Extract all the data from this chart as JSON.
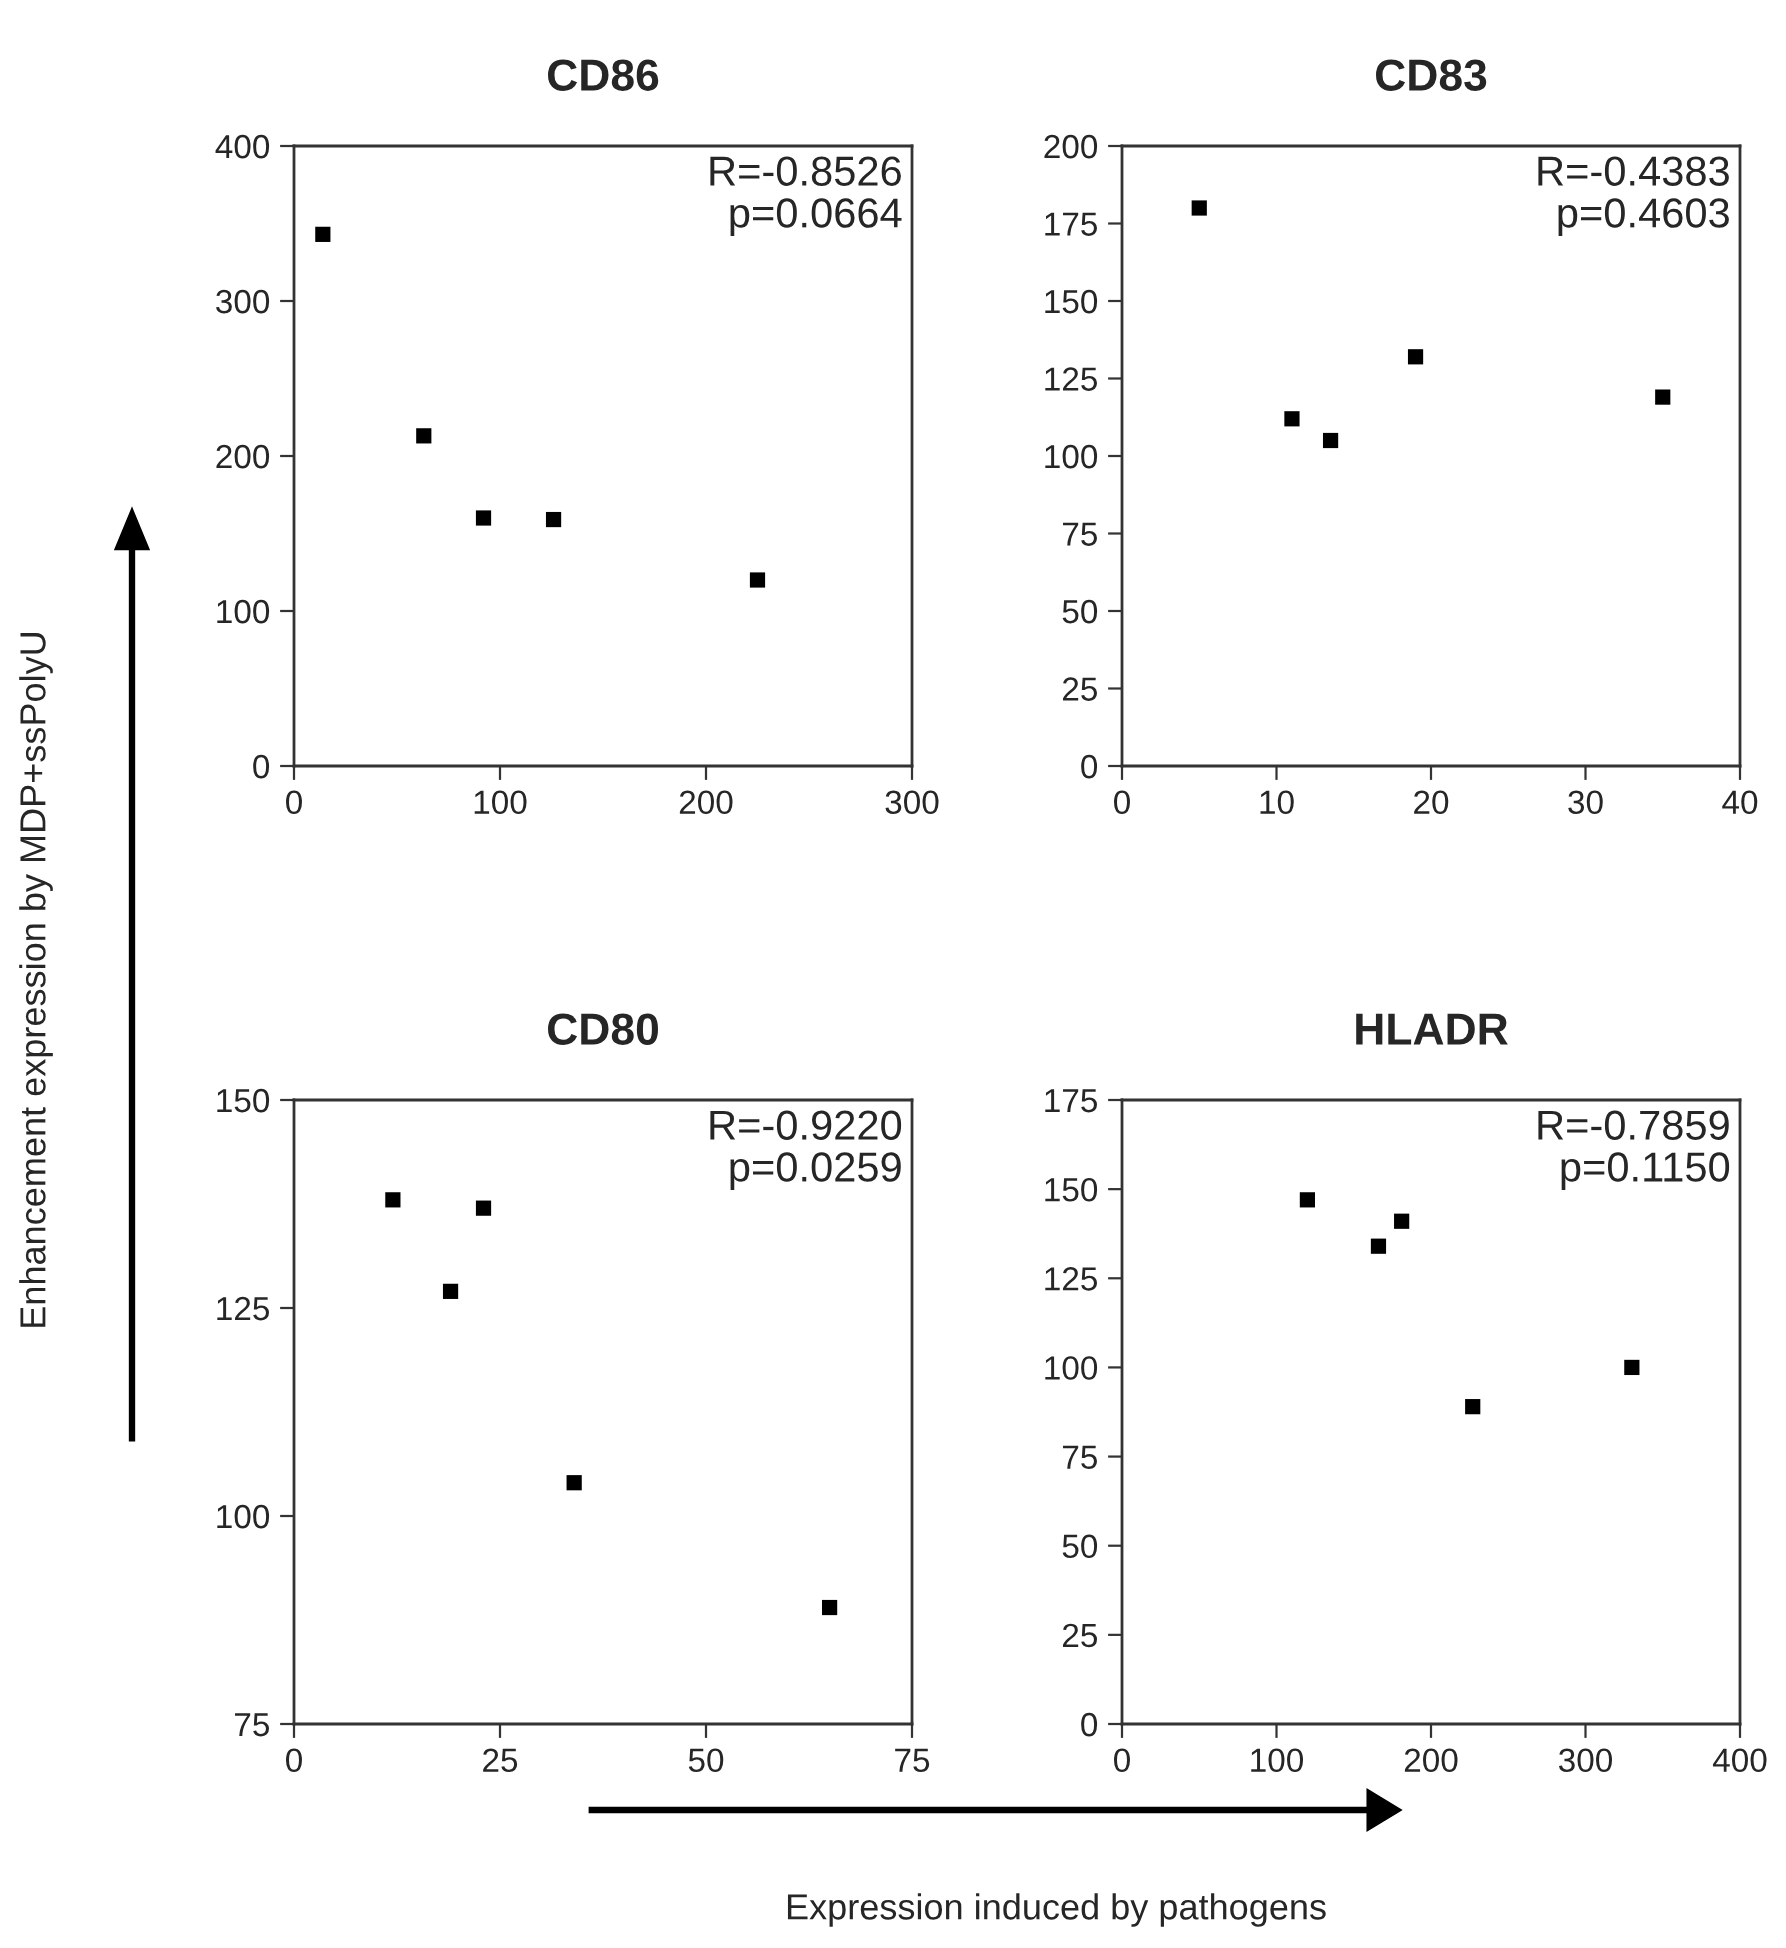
{
  "chart_data": [
    {
      "type": "scatter",
      "title": "CD86",
      "ylabel": "Enhancement expression by MDP+ssPolyU",
      "x": [
        14,
        63,
        92,
        126,
        225
      ],
      "series": [
        {
          "color": "#000000",
          "values": [
            343,
            213,
            160,
            159,
            120
          ]
        }
      ],
      "xlim": [
        0,
        300
      ],
      "xticks": [
        0,
        100,
        200,
        300
      ],
      "ylim": [
        0,
        400
      ],
      "yticks": [
        0,
        100,
        200,
        300,
        400
      ],
      "marker": "square",
      "grid": false,
      "annotations": [
        "R=-0.8526",
        "p=0.0664"
      ]
    },
    {
      "type": "scatter",
      "title": "CD83",
      "x": [
        5,
        11,
        13.5,
        19,
        35
      ],
      "series": [
        {
          "color": "#000000",
          "values": [
            180,
            112,
            105,
            132,
            119
          ]
        }
      ],
      "xlim": [
        0,
        40
      ],
      "xticks": [
        0,
        10,
        20,
        30,
        40
      ],
      "ylim": [
        0,
        200
      ],
      "yticks": [
        0,
        25,
        50,
        75,
        100,
        125,
        150,
        175,
        200
      ],
      "marker": "square",
      "grid": false,
      "annotations": [
        "R=-0.4383",
        "p=0.4603"
      ]
    },
    {
      "type": "scatter",
      "title": "CD80",
      "x": [
        12,
        19,
        23,
        34,
        65
      ],
      "series": [
        {
          "color": "#000000",
          "values": [
            138,
            127,
            137,
            104,
            89
          ]
        }
      ],
      "xlim": [
        0,
        75
      ],
      "xticks": [
        0,
        25,
        50,
        75
      ],
      "ylim": [
        75,
        150
      ],
      "yticks": [
        75,
        100,
        125,
        150
      ],
      "marker": "square",
      "grid": false,
      "annotations": [
        "R=-0.9220",
        "p=0.0259"
      ]
    },
    {
      "type": "scatter",
      "title": "HLADR",
      "xlabel": "Expression induced by pathogens",
      "x": [
        120,
        166,
        181,
        227,
        330
      ],
      "series": [
        {
          "color": "#000000",
          "values": [
            147,
            134,
            141,
            89,
            100
          ]
        }
      ],
      "xlim": [
        0,
        400
      ],
      "xticks": [
        0,
        100,
        200,
        300,
        400
      ],
      "ylim": [
        0,
        175
      ],
      "yticks": [
        0,
        25,
        50,
        75,
        100,
        125,
        150,
        175
      ],
      "marker": "square",
      "grid": false,
      "annotations": [
        "R=-0.7859",
        "p=0.1150"
      ]
    }
  ]
}
